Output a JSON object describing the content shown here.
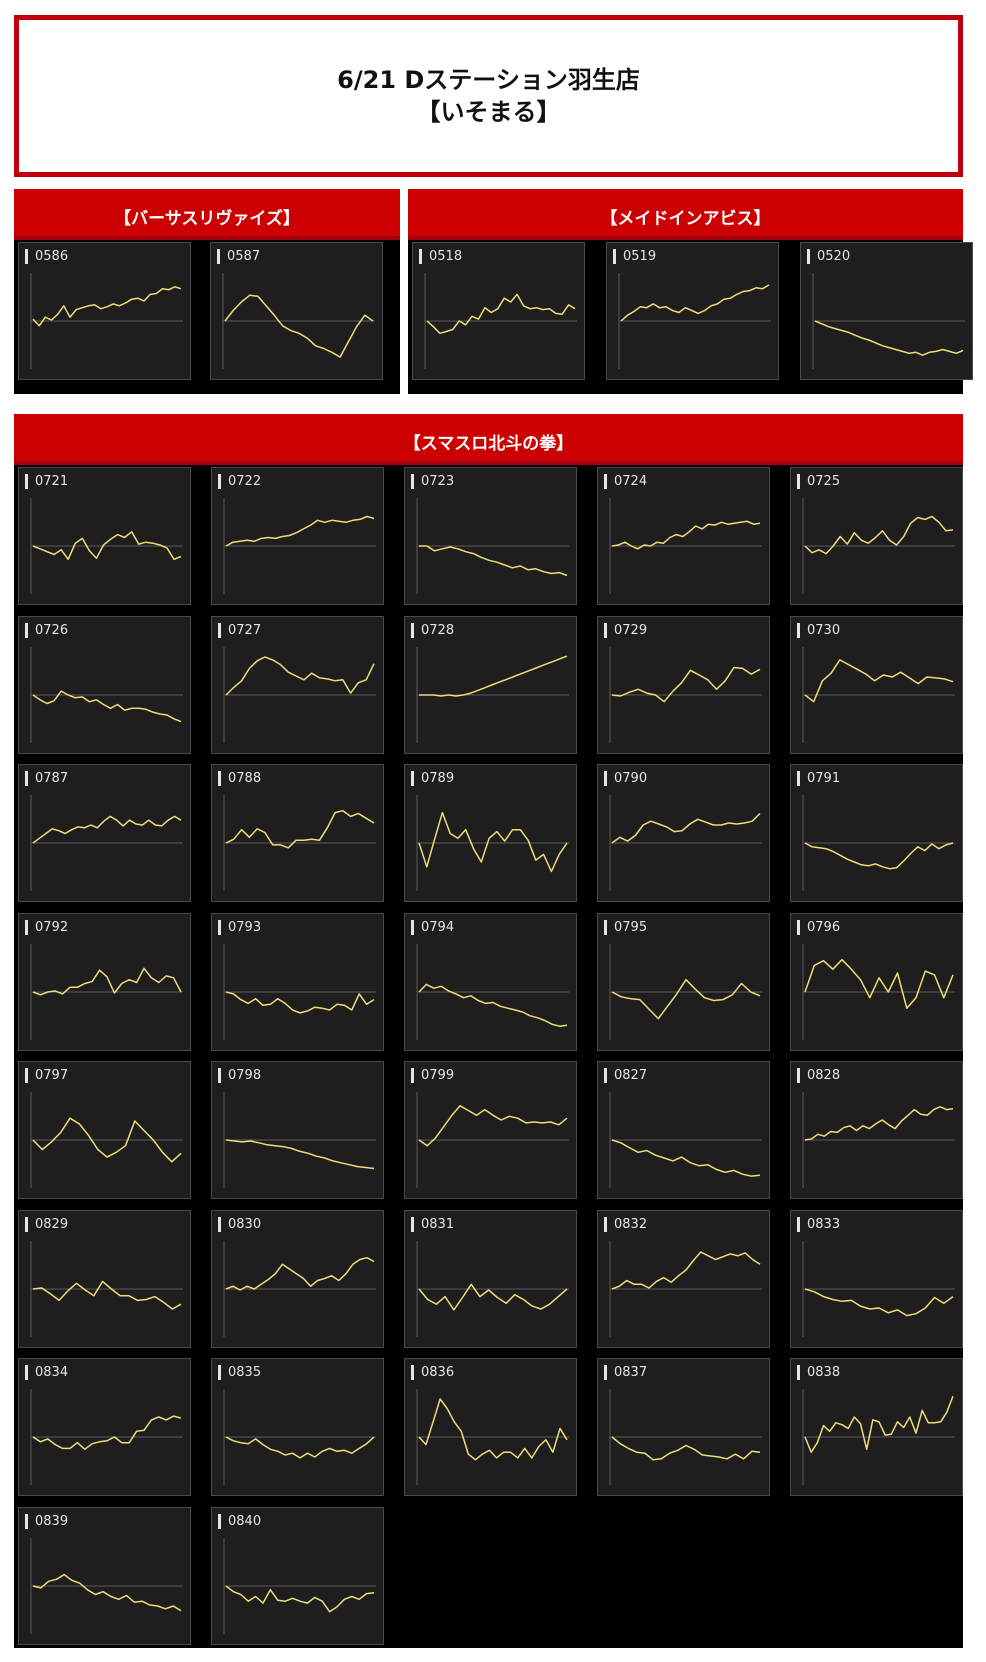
{
  "header": {
    "line1": "6/21 Dステーション羽生店",
    "line2": "【いそまる】"
  },
  "colors": {
    "accent": "#cc0000",
    "panel": "#1e1e1e",
    "line": "#f0dc78",
    "zero": "#5a5a5a"
  },
  "sections": [
    {
      "title": "【バーサスリヴァイズ】"
    },
    {
      "title": "【メイドインアビス】"
    },
    {
      "title": "【スマスロ北斗の拳】"
    }
  ],
  "chart_data": [
    {
      "type": "line",
      "machine": "0586",
      "values": [
        0.2,
        -0.5,
        0.4,
        0.1,
        0.7,
        1.6,
        0.4,
        1.2,
        1.4,
        1.6,
        1.7,
        1.3,
        1.5,
        1.8,
        1.6,
        1.9,
        2.3,
        2.4,
        2.1,
        2.8,
        2.9,
        3.4,
        3.3,
        3.6,
        3.4
      ]
    },
    {
      "type": "line",
      "machine": "0587",
      "values": [
        0.0,
        1.1,
        2.0,
        2.7,
        2.6,
        1.6,
        0.6,
        -0.5,
        -1.0,
        -1.3,
        -1.8,
        -2.6,
        -2.9,
        -3.3,
        -3.8,
        -2.2,
        -0.6,
        0.6,
        0.0
      ]
    },
    {
      "type": "line",
      "machine": "0518",
      "values": [
        0.0,
        -0.6,
        -1.3,
        -1.1,
        -0.9,
        0.0,
        -0.4,
        0.5,
        0.2,
        1.4,
        0.9,
        1.3,
        2.4,
        2.0,
        2.8,
        1.6,
        1.3,
        1.4,
        1.2,
        1.3,
        0.8,
        0.7,
        1.7,
        1.3
      ]
    },
    {
      "type": "line",
      "machine": "0519",
      "values": [
        0.0,
        0.6,
        1.0,
        1.5,
        1.4,
        1.8,
        1.4,
        1.5,
        1.1,
        0.9,
        1.4,
        1.1,
        0.8,
        1.1,
        1.6,
        1.8,
        2.3,
        2.4,
        2.8,
        3.1,
        3.2,
        3.5,
        3.4,
        3.8
      ]
    },
    {
      "type": "line",
      "machine": "0520",
      "values": [
        0.0,
        -0.3,
        -0.6,
        -0.8,
        -1.0,
        -1.2,
        -1.5,
        -1.8,
        -2.0,
        -2.3,
        -2.6,
        -2.8,
        -3.0,
        -3.2,
        -3.4,
        -3.3,
        -3.6,
        -3.3,
        -3.2,
        -3.0,
        -3.2,
        -3.4,
        -3.1
      ]
    },
    {
      "type": "line",
      "machine": "0721",
      "values": [
        0.0,
        -0.3,
        -0.6,
        -0.9,
        -0.4,
        -1.4,
        0.3,
        0.8,
        -0.5,
        -1.3,
        0.1,
        0.7,
        1.2,
        0.9,
        1.5,
        0.2,
        0.4,
        0.3,
        0.1,
        -0.2,
        -1.4,
        -1.1
      ]
    },
    {
      "type": "line",
      "machine": "0722",
      "values": [
        0.0,
        0.4,
        0.5,
        0.6,
        0.5,
        0.8,
        0.9,
        0.8,
        1.0,
        1.1,
        1.4,
        1.8,
        2.2,
        2.7,
        2.5,
        2.7,
        2.6,
        2.5,
        2.7,
        2.8,
        3.1,
        2.9
      ]
    },
    {
      "type": "line",
      "machine": "0723",
      "values": [
        0.0,
        0.0,
        -0.5,
        -0.3,
        -0.1,
        -0.3,
        -0.6,
        -0.8,
        -1.2,
        -1.5,
        -1.7,
        -2.0,
        -2.3,
        -2.1,
        -2.5,
        -2.4,
        -2.7,
        -2.9,
        -2.8,
        -3.1
      ]
    },
    {
      "type": "line",
      "machine": "0724",
      "values": [
        0.0,
        0.1,
        0.4,
        0.0,
        -0.3,
        0.1,
        0.0,
        0.4,
        0.3,
        0.9,
        1.2,
        1.0,
        1.5,
        2.1,
        1.8,
        2.3,
        2.2,
        2.5,
        2.3,
        2.4,
        2.5,
        2.6,
        2.3,
        2.4
      ]
    },
    {
      "type": "line",
      "machine": "0725",
      "values": [
        0.0,
        -0.7,
        -0.4,
        -0.8,
        0.0,
        1.0,
        0.2,
        1.4,
        0.6,
        0.3,
        0.9,
        1.6,
        0.6,
        0.1,
        1.0,
        2.4,
        3.0,
        2.8,
        3.1,
        2.5,
        1.6,
        1.7
      ]
    },
    {
      "type": "line",
      "machine": "0726",
      "values": [
        0.0,
        -0.5,
        -0.9,
        -0.6,
        0.4,
        0.0,
        -0.3,
        -0.2,
        -0.7,
        -0.5,
        -1.0,
        -1.4,
        -1.0,
        -1.6,
        -1.4,
        -1.4,
        -1.5,
        -1.8,
        -2.0,
        -2.1,
        -2.5,
        -2.8
      ]
    },
    {
      "type": "line",
      "machine": "0727",
      "values": [
        0.0,
        0.8,
        1.5,
        2.8,
        3.6,
        4.0,
        3.7,
        3.2,
        2.4,
        2.0,
        1.6,
        2.3,
        1.8,
        1.7,
        1.5,
        1.6,
        0.2,
        1.3,
        1.6,
        3.3
      ]
    },
    {
      "type": "line",
      "machine": "0728",
      "values": [
        0.0,
        0.0,
        0.0,
        -0.1,
        0.0,
        -0.1,
        0.0,
        0.2,
        0.5,
        0.8,
        1.1,
        1.4,
        1.7,
        2.0,
        2.3,
        2.6,
        2.9,
        3.2,
        3.5,
        3.8,
        4.1
      ]
    },
    {
      "type": "line",
      "machine": "0729",
      "values": [
        0.0,
        -0.1,
        0.3,
        0.6,
        0.2,
        0.0,
        -0.7,
        0.4,
        1.3,
        2.6,
        2.1,
        1.6,
        0.6,
        1.5,
        2.9,
        2.8,
        2.2,
        2.7
      ]
    },
    {
      "type": "line",
      "machine": "0730",
      "values": [
        0.0,
        -0.7,
        1.5,
        2.3,
        3.7,
        3.2,
        2.7,
        2.2,
        1.5,
        2.1,
        1.9,
        2.4,
        1.8,
        1.2,
        1.9,
        1.8,
        1.7,
        1.4
      ]
    },
    {
      "type": "line",
      "machine": "0787",
      "values": [
        0.0,
        0.5,
        1.0,
        1.5,
        1.3,
        1.0,
        1.4,
        1.7,
        1.6,
        1.9,
        1.6,
        2.3,
        2.8,
        2.4,
        1.8,
        2.4,
        2.0,
        1.9,
        2.4,
        1.9,
        1.8,
        2.4,
        2.8,
        2.4
      ]
    },
    {
      "type": "line",
      "machine": "0788",
      "values": [
        0.0,
        0.4,
        1.4,
        0.6,
        1.5,
        1.1,
        -0.2,
        -0.2,
        -0.5,
        0.3,
        0.3,
        0.4,
        0.3,
        1.6,
        3.2,
        3.4,
        2.8,
        3.1,
        2.6,
        2.1
      ]
    },
    {
      "type": "line",
      "machine": "0789",
      "values": [
        0.0,
        -2.5,
        0.4,
        3.2,
        1.0,
        0.5,
        1.4,
        -0.6,
        -2.0,
        0.5,
        1.2,
        0.2,
        1.4,
        1.4,
        0.3,
        -1.8,
        -1.2,
        -3.0,
        -1.2,
        0.0
      ]
    },
    {
      "type": "line",
      "machine": "0790",
      "values": [
        0.0,
        0.6,
        0.2,
        0.8,
        1.9,
        2.3,
        2.0,
        1.7,
        1.2,
        1.3,
        2.0,
        2.5,
        2.2,
        1.9,
        1.9,
        2.1,
        2.0,
        2.1,
        2.3,
        3.1
      ]
    },
    {
      "type": "line",
      "machine": "0791",
      "values": [
        0.0,
        -0.4,
        -0.5,
        -0.6,
        -0.9,
        -1.3,
        -1.7,
        -2.0,
        -2.3,
        -2.4,
        -2.2,
        -2.5,
        -2.7,
        -2.6,
        -1.9,
        -1.1,
        -0.4,
        -0.8,
        -0.1,
        -0.6,
        -0.2,
        0.0
      ]
    },
    {
      "type": "line",
      "machine": "0792",
      "values": [
        0.0,
        -0.3,
        0.0,
        0.1,
        -0.2,
        0.5,
        0.5,
        0.9,
        1.1,
        2.3,
        1.6,
        -0.1,
        0.9,
        1.3,
        1.0,
        2.5,
        1.5,
        1.0,
        1.7,
        1.5,
        0.0
      ]
    },
    {
      "type": "line",
      "machine": "0793",
      "values": [
        0.0,
        -0.2,
        -0.8,
        -1.2,
        -0.7,
        -1.4,
        -1.3,
        -0.7,
        -1.2,
        -1.9,
        -2.2,
        -2.0,
        -1.6,
        -1.7,
        -1.9,
        -1.3,
        -1.4,
        -1.9,
        -0.2,
        -1.3,
        -0.8
      ]
    },
    {
      "type": "line",
      "machine": "0794",
      "values": [
        0.0,
        0.8,
        0.4,
        0.6,
        0.1,
        -0.2,
        -0.6,
        -0.4,
        -0.9,
        -1.2,
        -1.1,
        -1.5,
        -1.7,
        -1.9,
        -2.1,
        -2.5,
        -2.7,
        -3.0,
        -3.4,
        -3.6,
        -3.5
      ]
    },
    {
      "type": "line",
      "machine": "0795",
      "values": [
        0.0,
        -0.5,
        -0.7,
        -0.8,
        -1.8,
        -2.8,
        -1.5,
        -0.2,
        1.3,
        0.3,
        -0.6,
        -0.9,
        -0.8,
        -0.3,
        0.9,
        0.0,
        -0.4
      ]
    },
    {
      "type": "line",
      "machine": "0796",
      "values": [
        0.0,
        2.8,
        3.3,
        2.4,
        3.4,
        2.4,
        1.3,
        -0.6,
        1.5,
        0.0,
        2.0,
        -1.7,
        -0.6,
        2.2,
        1.8,
        -0.6,
        1.8
      ]
    },
    {
      "type": "line",
      "machine": "0797",
      "values": [
        0.0,
        -1.0,
        -0.2,
        0.8,
        2.3,
        1.7,
        0.5,
        -1.0,
        -1.8,
        -1.3,
        -0.6,
        2.0,
        1.0,
        0.0,
        -1.3,
        -2.3,
        -1.4
      ]
    },
    {
      "type": "line",
      "machine": "0798",
      "values": [
        0.0,
        -0.1,
        -0.2,
        -0.1,
        -0.3,
        -0.5,
        -0.6,
        -0.7,
        -0.9,
        -1.2,
        -1.4,
        -1.7,
        -1.9,
        -2.2,
        -2.4,
        -2.6,
        -2.8,
        -2.9,
        -3.0
      ]
    },
    {
      "type": "line",
      "machine": "0799",
      "values": [
        0.0,
        -0.6,
        0.2,
        1.4,
        2.6,
        3.6,
        3.1,
        2.6,
        3.2,
        2.6,
        2.1,
        2.5,
        2.3,
        1.8,
        1.9,
        1.8,
        1.9,
        1.6,
        2.3
      ]
    },
    {
      "type": "line",
      "machine": "0827",
      "values": [
        0.0,
        -0.3,
        -0.8,
        -1.3,
        -1.1,
        -1.6,
        -1.9,
        -2.2,
        -1.8,
        -2.4,
        -2.7,
        -2.6,
        -3.1,
        -3.4,
        -3.2,
        -3.6,
        -3.8,
        -3.7
      ]
    },
    {
      "type": "line",
      "machine": "0828",
      "values": [
        0.0,
        0.1,
        0.6,
        0.4,
        0.9,
        0.8,
        1.3,
        1.5,
        1.0,
        1.5,
        1.2,
        1.7,
        2.1,
        1.6,
        1.2,
        2.0,
        2.6,
        3.2,
        2.7,
        2.6,
        3.2,
        3.5,
        3.2,
        3.3
      ]
    },
    {
      "type": "line",
      "machine": "0829",
      "values": [
        0.0,
        0.1,
        -0.5,
        -1.2,
        -0.2,
        0.6,
        -0.1,
        -0.7,
        0.8,
        0.0,
        -0.7,
        -0.7,
        -1.2,
        -1.1,
        -0.8,
        -1.4,
        -2.1,
        -1.6
      ]
    },
    {
      "type": "line",
      "machine": "0830",
      "values": [
        0.0,
        0.3,
        -0.1,
        0.3,
        0.0,
        0.5,
        1.0,
        1.6,
        2.6,
        2.1,
        1.6,
        1.1,
        0.3,
        0.9,
        1.1,
        1.4,
        0.9,
        1.6,
        2.6,
        3.1,
        3.3,
        2.9
      ]
    },
    {
      "type": "line",
      "machine": "0831",
      "values": [
        0.0,
        -1.1,
        -1.6,
        -0.8,
        -2.2,
        -0.9,
        0.5,
        -0.8,
        -0.1,
        -0.9,
        -1.5,
        -0.6,
        -1.1,
        -1.8,
        -2.1,
        -1.6,
        -0.8,
        0.0
      ]
    },
    {
      "type": "line",
      "machine": "0832",
      "values": [
        0.0,
        0.3,
        0.9,
        0.5,
        0.5,
        0.1,
        0.8,
        1.2,
        0.7,
        1.4,
        2.0,
        3.0,
        3.9,
        3.5,
        3.1,
        3.4,
        3.7,
        3.5,
        3.8,
        3.1,
        2.6
      ]
    },
    {
      "type": "line",
      "machine": "0833",
      "values": [
        0.0,
        -0.3,
        -0.8,
        -1.1,
        -1.3,
        -1.2,
        -1.8,
        -2.1,
        -2.0,
        -2.5,
        -2.2,
        -2.8,
        -2.6,
        -2.0,
        -0.9,
        -1.5,
        -0.8
      ]
    },
    {
      "type": "line",
      "machine": "0834",
      "values": [
        0.0,
        -0.5,
        -0.2,
        -0.8,
        -1.2,
        -1.2,
        -0.6,
        -1.3,
        -0.7,
        -0.5,
        -0.4,
        0.0,
        -0.6,
        -0.6,
        0.6,
        0.7,
        1.8,
        2.1,
        1.8,
        2.2,
        2.0
      ]
    },
    {
      "type": "line",
      "machine": "0835",
      "values": [
        0.0,
        -0.4,
        -0.6,
        -0.7,
        -0.2,
        -0.8,
        -1.3,
        -1.5,
        -1.9,
        -1.7,
        -2.2,
        -1.7,
        -2.1,
        -1.5,
        -1.2,
        -1.5,
        -1.4,
        -1.7,
        -1.2,
        -0.7,
        0.0
      ]
    },
    {
      "type": "line",
      "machine": "0836",
      "values": [
        0.0,
        -0.8,
        1.6,
        4.0,
        3.0,
        1.6,
        0.6,
        -1.8,
        -2.4,
        -1.8,
        -1.4,
        -2.2,
        -1.6,
        -1.6,
        -2.2,
        -1.2,
        -2.2,
        -1.0,
        -0.3,
        -1.6,
        0.9,
        -0.3
      ]
    },
    {
      "type": "line",
      "machine": "0837",
      "values": [
        0.0,
        -0.7,
        -1.2,
        -1.6,
        -1.7,
        -2.4,
        -2.3,
        -1.7,
        -1.4,
        -0.9,
        -1.3,
        -1.9,
        -2.0,
        -2.1,
        -2.3,
        -1.8,
        -2.3,
        -1.5,
        -1.6
      ]
    },
    {
      "type": "line",
      "machine": "0838",
      "values": [
        0.0,
        -1.6,
        -0.6,
        1.2,
        0.6,
        1.5,
        1.3,
        0.9,
        2.1,
        1.4,
        -1.3,
        1.8,
        1.6,
        0.2,
        0.3,
        1.6,
        1.0,
        2.1,
        0.4,
        2.8,
        1.5,
        1.5,
        1.6,
        2.6,
        4.3
      ]
    },
    {
      "type": "line",
      "machine": "0839",
      "values": [
        0.0,
        -0.2,
        0.5,
        0.7,
        1.2,
        0.6,
        0.3,
        -0.4,
        -0.9,
        -0.6,
        -1.1,
        -1.4,
        -1.0,
        -1.7,
        -1.6,
        -2.0,
        -2.1,
        -2.4,
        -2.1,
        -2.6
      ]
    },
    {
      "type": "line",
      "machine": "0840",
      "values": [
        0.0,
        -0.6,
        -0.9,
        -1.6,
        -1.1,
        -1.8,
        -0.4,
        -1.5,
        -1.6,
        -1.3,
        -1.6,
        -1.8,
        -1.2,
        -1.6,
        -2.7,
        -2.2,
        -1.4,
        -1.1,
        -1.4,
        -0.8,
        -0.7
      ]
    }
  ]
}
